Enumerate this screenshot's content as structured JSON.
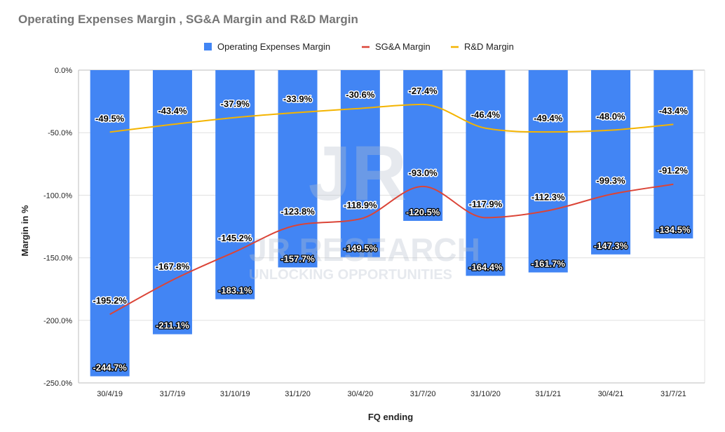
{
  "chart_data": {
    "type": "bar",
    "title": "Operating Expenses Margin , SG&A Margin and R&D Margin",
    "xlabel": "FQ ending",
    "ylabel": "Margin in %",
    "ylim": [
      -250,
      0
    ],
    "yticks": [
      "0.0%",
      "-50.0%",
      "-100.0%",
      "-150.0%",
      "-200.0%",
      "-250.0%"
    ],
    "grid": true,
    "legend_position": "top-center",
    "categories": [
      "30/4/19",
      "31/7/19",
      "31/10/19",
      "31/1/20",
      "30/4/20",
      "31/7/20",
      "31/10/20",
      "31/1/21",
      "30/4/21",
      "31/7/21"
    ],
    "series": [
      {
        "name": "Operating Expenses Margin",
        "type": "bar",
        "color": "#4285f4",
        "values": [
          -244.7,
          -211.1,
          -183.1,
          -157.7,
          -149.5,
          -120.5,
          -164.4,
          -161.7,
          -147.3,
          -134.5
        ],
        "labels": [
          "-244.7%",
          "-211.1%",
          "-183.1%",
          "-157.7%",
          "-149.5%",
          "-120.5%",
          "-164.4%",
          "-161.7%",
          "-147.3%",
          "-134.5%"
        ]
      },
      {
        "name": "SG&A Margin",
        "type": "line",
        "color": "#db4437",
        "values": [
          -195.2,
          -167.8,
          -145.2,
          -123.8,
          -118.9,
          -93.0,
          -117.9,
          -112.3,
          -99.3,
          -91.2
        ],
        "labels": [
          "-195.2%",
          "-167.8%",
          "-145.2%",
          "-123.8%",
          "-118.9%",
          "-93.0%",
          "-117.9%",
          "-112.3%",
          "-99.3%",
          "-91.2%"
        ]
      },
      {
        "name": "R&D Margin",
        "type": "line",
        "color": "#f4b400",
        "values": [
          -49.5,
          -43.4,
          -37.9,
          -33.9,
          -30.6,
          -27.4,
          -46.4,
          -49.4,
          -48.0,
          -43.4
        ],
        "labels": [
          "-49.5%",
          "-43.4%",
          "-37.9%",
          "-33.9%",
          "-30.6%",
          "-27.4%",
          "-46.4%",
          "-49.4%",
          "-48.0%",
          "-43.4%"
        ]
      }
    ]
  },
  "watermark": {
    "logo": "JR",
    "name": "JR RESEARCH",
    "tagline": "UNLOCKING OPPORTUNITIES"
  }
}
